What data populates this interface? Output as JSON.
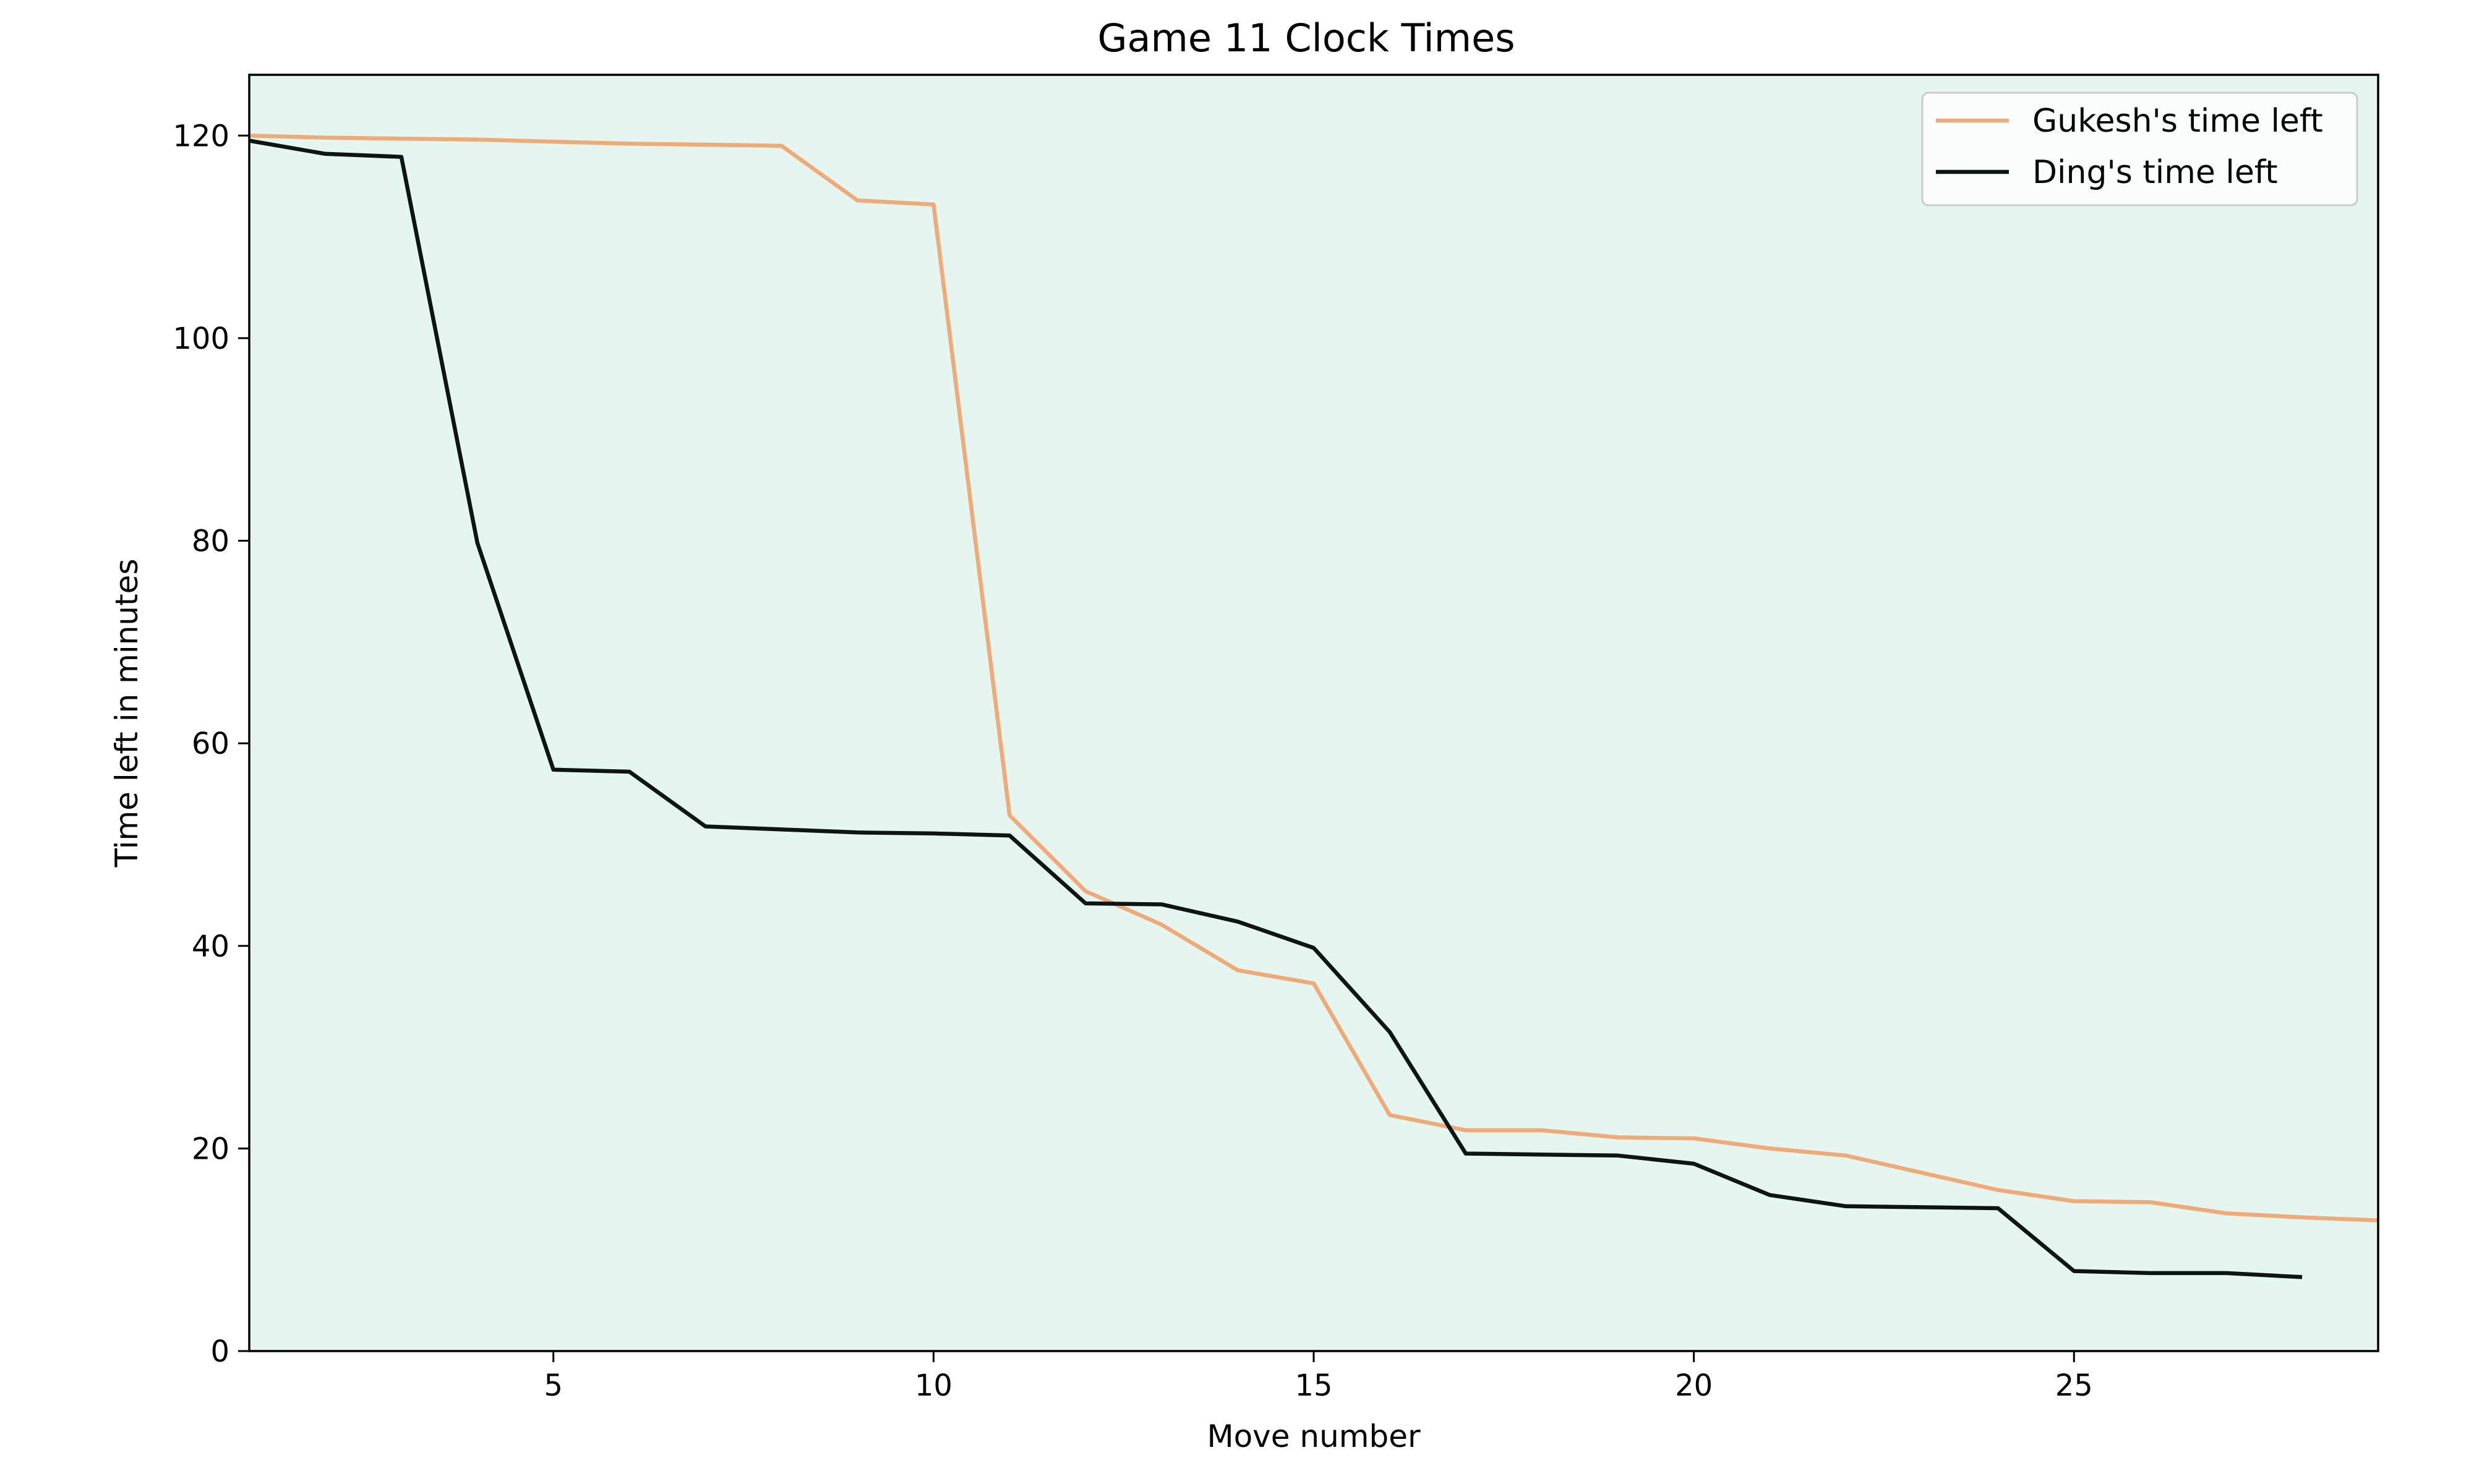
{
  "chart_data": {
    "type": "line",
    "title": "Game 11 Clock Times",
    "xlabel": "Move number",
    "ylabel": "Time left in minutes",
    "xlim": [
      1,
      29
    ],
    "ylim": [
      0,
      126
    ],
    "xticks": [
      5,
      10,
      15,
      20,
      25
    ],
    "yticks": [
      0,
      20,
      40,
      60,
      80,
      100,
      120
    ],
    "grid": false,
    "legend_position": "top-right",
    "background_color": "#e5f5ef",
    "series": [
      {
        "name": "Gukesh's time left",
        "color": "#f0aa78",
        "x": [
          1,
          2,
          3,
          4,
          5,
          6,
          7,
          8,
          9,
          10,
          11,
          12,
          13,
          14,
          15,
          16,
          17,
          18,
          19,
          20,
          21,
          22,
          23,
          24,
          25,
          26,
          27,
          28,
          29
        ],
        "values": [
          120,
          119.8,
          119.7,
          119.6,
          119.4,
          119.2,
          119.1,
          119,
          113.6,
          113.2,
          52.9,
          45.4,
          42.1,
          37.6,
          36.3,
          23.3,
          21.8,
          21.8,
          21.1,
          21,
          20,
          19.3,
          17.6,
          15.9,
          14.8,
          14.7,
          13.6,
          13.2,
          12.9
        ]
      },
      {
        "name": "Ding's time left",
        "color": "#0d1513",
        "x": [
          1,
          2,
          3,
          4,
          5,
          6,
          7,
          8,
          9,
          10,
          11,
          12,
          13,
          14,
          15,
          16,
          17,
          18,
          19,
          20,
          21,
          22,
          23,
          24,
          25,
          26,
          27,
          28
        ],
        "values": [
          119.5,
          118.2,
          117.9,
          79.8,
          57.4,
          57.2,
          51.8,
          51.5,
          51.2,
          51.1,
          50.9,
          44.2,
          44.1,
          42.4,
          39.8,
          31.5,
          19.5,
          19.4,
          19.3,
          18.5,
          15.4,
          14.3,
          14.2,
          14.1,
          7.9,
          7.7,
          7.7,
          7.3
        ]
      }
    ]
  }
}
